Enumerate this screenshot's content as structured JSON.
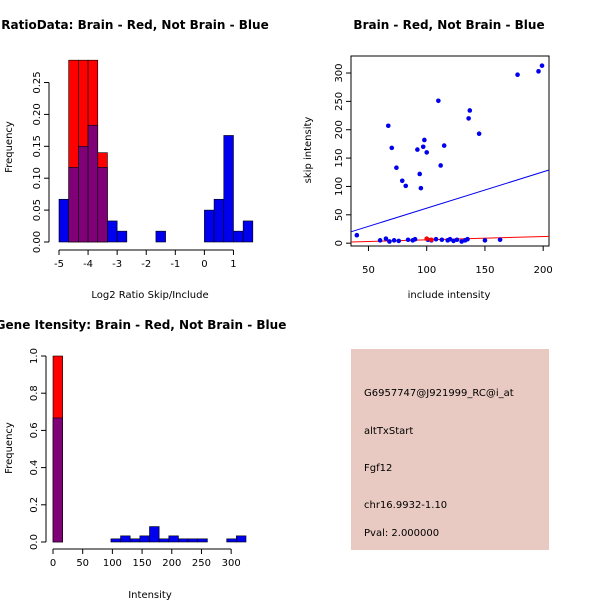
{
  "colors": {
    "red": "#ff0000",
    "blue": "#0000ee",
    "purple": "#7f0077",
    "panel_bg": "#e8cac2",
    "axis": "#000000",
    "pval_text": "#cc0000"
  },
  "chart_data": [
    {
      "id": "ratio_hist",
      "type": "bar",
      "title": "RatioData: Brain - Red, Not Brain - Blue",
      "xlabel": "Log2 Ratio Skip/Include",
      "ylabel": "Frequency",
      "xlim": [
        -5,
        1.5
      ],
      "ylim": [
        0,
        0.29
      ],
      "xticks": [
        -5,
        -4,
        -3,
        -2,
        -1,
        0,
        1
      ],
      "yticks": [
        0.0,
        0.05,
        0.1,
        0.15,
        0.2,
        0.25
      ],
      "ytick_labels": [
        "0.00",
        "0.05",
        "0.10",
        "0.15",
        "0.20",
        "0.25"
      ],
      "bin_width": 0.333,
      "series": [
        {
          "name": "Brain",
          "color": "red",
          "bins": [
            {
              "x0": -4.667,
              "value": 0.285
            },
            {
              "x0": -4.333,
              "value": 0.285
            },
            {
              "x0": -4.0,
              "value": 0.285
            },
            {
              "x0": -3.667,
              "value": 0.14
            }
          ]
        },
        {
          "name": "Not Brain",
          "color": "blue",
          "bins": [
            {
              "x0": -5.0,
              "value": 0.067
            },
            {
              "x0": -4.667,
              "value": 0.117
            },
            {
              "x0": -4.333,
              "value": 0.15
            },
            {
              "x0": -4.0,
              "value": 0.183
            },
            {
              "x0": -3.667,
              "value": 0.117
            },
            {
              "x0": -3.333,
              "value": 0.033
            },
            {
              "x0": -3.0,
              "value": 0.017
            },
            {
              "x0": -1.667,
              "value": 0.017
            },
            {
              "x0": 0.0,
              "value": 0.05
            },
            {
              "x0": 0.333,
              "value": 0.067
            },
            {
              "x0": 0.667,
              "value": 0.167
            },
            {
              "x0": 1.0,
              "value": 0.017
            },
            {
              "x0": 1.333,
              "value": 0.033
            }
          ]
        }
      ]
    },
    {
      "id": "intensity_scatter",
      "type": "scatter",
      "title": "Brain - Red, Not Brain - Blue",
      "xlabel": "include intensity",
      "ylabel": "skip intensity",
      "xlim": [
        35,
        205
      ],
      "ylim": [
        -5,
        330
      ],
      "xticks": [
        50,
        100,
        150,
        200
      ],
      "yticks": [
        0,
        50,
        100,
        150,
        200,
        250,
        300
      ],
      "series": [
        {
          "name": "Not Brain",
          "color": "blue",
          "points": [
            [
              40,
              14
            ],
            [
              60,
              5
            ],
            [
              65,
              8
            ],
            [
              67,
              207
            ],
            [
              68,
              3
            ],
            [
              70,
              168
            ],
            [
              72,
              5
            ],
            [
              74,
              133
            ],
            [
              76,
              4
            ],
            [
              79,
              110
            ],
            [
              82,
              101
            ],
            [
              84,
              6
            ],
            [
              88,
              5
            ],
            [
              90,
              7
            ],
            [
              92,
              165
            ],
            [
              94,
              122
            ],
            [
              95,
              97
            ],
            [
              97,
              170
            ],
            [
              98,
              182
            ],
            [
              100,
              160
            ],
            [
              101,
              6
            ],
            [
              104,
              5
            ],
            [
              108,
              7
            ],
            [
              110,
              251
            ],
            [
              112,
              137
            ],
            [
              113,
              6
            ],
            [
              115,
              172
            ],
            [
              118,
              5
            ],
            [
              120,
              7
            ],
            [
              123,
              4
            ],
            [
              126,
              6
            ],
            [
              130,
              3
            ],
            [
              133,
              5
            ],
            [
              135,
              7
            ],
            [
              136,
              220
            ],
            [
              137,
              234
            ],
            [
              145,
              193
            ],
            [
              150,
              5
            ],
            [
              163,
              6
            ],
            [
              178,
              297
            ],
            [
              196,
              303
            ],
            [
              199,
              313
            ]
          ]
        },
        {
          "name": "Brain",
          "color": "red",
          "points": [
            [
              100,
              8
            ],
            [
              104,
              6
            ]
          ]
        }
      ],
      "lines": [
        {
          "name": "Not Brain fit",
          "color": "blue",
          "from": [
            35,
            20
          ],
          "to": [
            205,
            129
          ]
        },
        {
          "name": "Brain fit",
          "color": "red",
          "from": [
            35,
            2
          ],
          "to": [
            205,
            12
          ]
        }
      ]
    },
    {
      "id": "gene_intensity_hist",
      "type": "bar",
      "title": "Gene Itensity: Brain - Red, Not Brain - Blue",
      "xlabel": "Intensity",
      "ylabel": "Frequency",
      "xlim": [
        0,
        325
      ],
      "ylim": [
        0,
        1.0
      ],
      "xticks": [
        0,
        50,
        100,
        150,
        200,
        250,
        300
      ],
      "yticks": [
        0.0,
        0.2,
        0.4,
        0.6,
        0.8,
        1.0
      ],
      "ytick_labels": [
        "0.0",
        "0.2",
        "0.4",
        "0.6",
        "0.8",
        "1.0"
      ],
      "bin_width": 16.25,
      "series": [
        {
          "name": "Brain",
          "color": "red",
          "bins": [
            {
              "x0": 0,
              "value": 1.0
            }
          ]
        },
        {
          "name": "Not Brain",
          "color": "blue",
          "bins": [
            {
              "x0": 0,
              "value": 0.667
            },
            {
              "x0": 97.5,
              "value": 0.017
            },
            {
              "x0": 113.75,
              "value": 0.033
            },
            {
              "x0": 130,
              "value": 0.017
            },
            {
              "x0": 146.25,
              "value": 0.033
            },
            {
              "x0": 162.5,
              "value": 0.083
            },
            {
              "x0": 178.75,
              "value": 0.017
            },
            {
              "x0": 195,
              "value": 0.033
            },
            {
              "x0": 211.25,
              "value": 0.017
            },
            {
              "x0": 227.5,
              "value": 0.017
            },
            {
              "x0": 243.75,
              "value": 0.017
            },
            {
              "x0": 292.5,
              "value": 0.017
            },
            {
              "x0": 308.75,
              "value": 0.033
            }
          ]
        }
      ]
    }
  ],
  "info_panel": {
    "probe_id": "G6957747@J921999_RC@i_at",
    "event_type": "altTxStart",
    "gene": "Fgf12",
    "location": "chr16.9932-1.10",
    "pval": "Pval: 2.000000"
  }
}
